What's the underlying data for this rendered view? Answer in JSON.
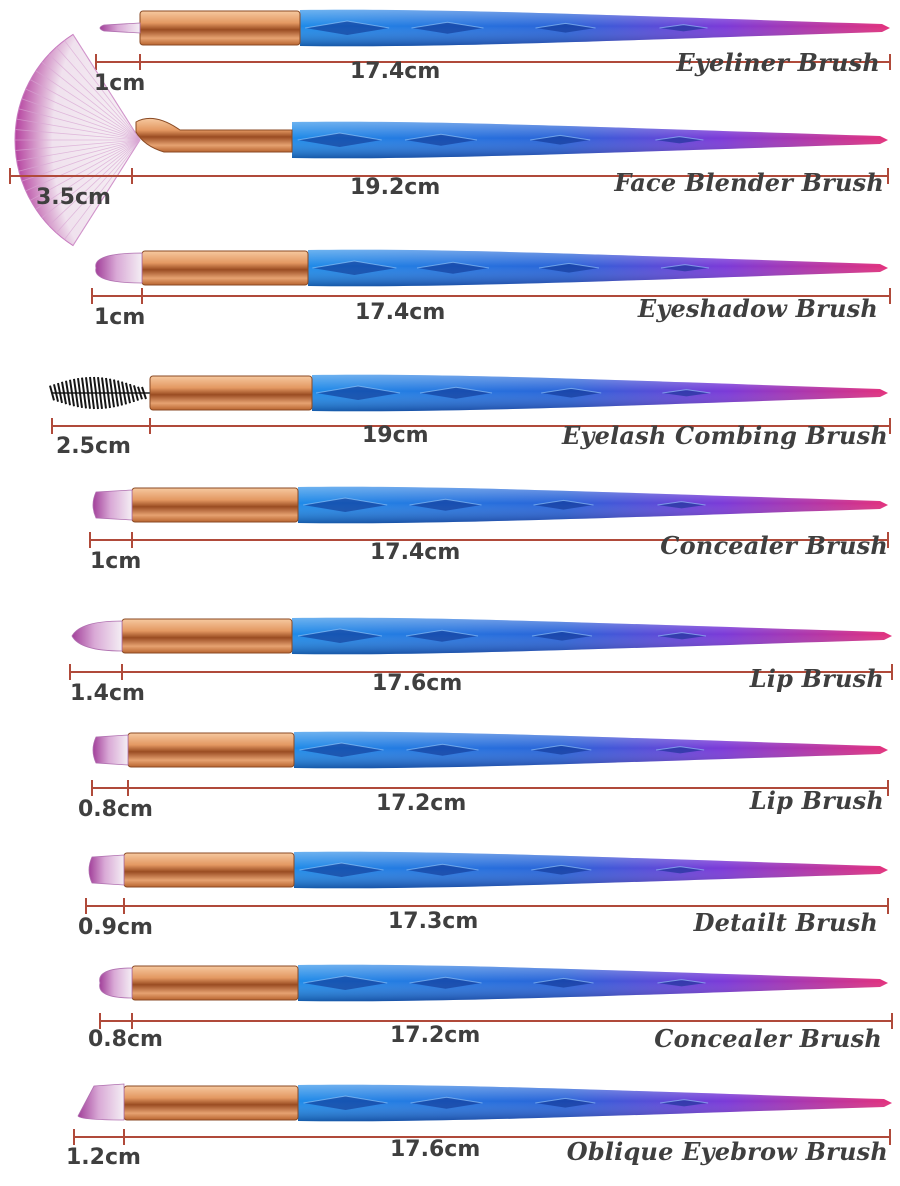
{
  "colors": {
    "measure_line": "#b04a3a",
    "ferrule_light": "#f1b98a",
    "ferrule_dark": "#a9572a",
    "handle_blue": "#1f7fe0",
    "handle_purple": "#7a3ad6",
    "handle_pink": "#e0307f",
    "bristle_white": "#f3eef4",
    "bristle_purple": "#b04aa8",
    "spoolie_black": "#151515",
    "label_text": "#3f3f3f"
  },
  "brushes": [
    {
      "name": "Eyeliner Brush",
      "tip_length": "1cm",
      "total_length": "17.4cm",
      "tip_style": "liner"
    },
    {
      "name": "Face Blender Brush",
      "tip_length": "3.5cm",
      "total_length": "19.2cm",
      "tip_style": "fan"
    },
    {
      "name": "Eyeshadow Brush",
      "tip_length": "1cm",
      "total_length": "17.4cm",
      "tip_style": "round"
    },
    {
      "name": "Eyelash Combing Brush",
      "tip_length": "2.5cm",
      "total_length": "19cm",
      "tip_style": "spoolie"
    },
    {
      "name": "Concealer Brush",
      "tip_length": "1cm",
      "total_length": "17.4cm",
      "tip_style": "flat"
    },
    {
      "name": "Lip Brush",
      "tip_length": "1.4cm",
      "total_length": "17.6cm",
      "tip_style": "pointed"
    },
    {
      "name": "Lip Brush",
      "tip_length": "0.8cm",
      "total_length": "17.2cm",
      "tip_style": "flat"
    },
    {
      "name": "Detailt Brush",
      "tip_length": "0.9cm",
      "total_length": "17.3cm",
      "tip_style": "flat"
    },
    {
      "name": "Concealer Brush",
      "tip_length": "0.8cm",
      "total_length": "17.2cm",
      "tip_style": "round"
    },
    {
      "name": "Oblique Eyebrow Brush",
      "tip_length": "1.2cm",
      "total_length": "17.6cm",
      "tip_style": "angled"
    }
  ]
}
